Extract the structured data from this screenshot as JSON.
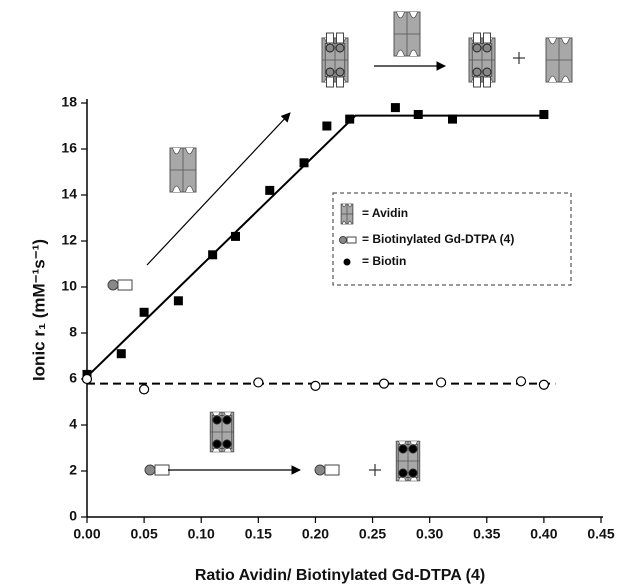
{
  "chart_data": {
    "type": "scatter",
    "x_label": "Ratio Avidin/ Biotinylated Gd-DTPA (4)",
    "y_label": "Ionic r₁ (mM⁻¹s⁻¹)",
    "xlim": [
      0,
      0.45
    ],
    "ylim": [
      0,
      18
    ],
    "xticks": [
      {
        "value": 0,
        "label": "0.00"
      },
      {
        "value": 0.05,
        "label": "0.05"
      },
      {
        "value": 0.1,
        "label": "0.10"
      },
      {
        "value": 0.15,
        "label": "0.15"
      },
      {
        "value": 0.2,
        "label": "0.20"
      },
      {
        "value": 0.25,
        "label": "0.25"
      },
      {
        "value": 0.3,
        "label": "0.30"
      },
      {
        "value": 0.35,
        "label": "0.35"
      },
      {
        "value": 0.4,
        "label": "0.40"
      },
      {
        "value": 0.45,
        "label": "0.45"
      }
    ],
    "yticks": [
      0,
      2,
      4,
      6,
      8,
      10,
      12,
      14,
      16,
      18
    ],
    "series": [
      {
        "marker": "square",
        "color": "#000000",
        "x": [
          0,
          0.03,
          0.05,
          0.08,
          0.11,
          0.13,
          0.16,
          0.19,
          0.21,
          0.23,
          0.27,
          0.29,
          0.32,
          0.4
        ],
        "values": [
          6.2,
          7.1,
          8.9,
          9.4,
          11.4,
          12.2,
          14.2,
          15.4,
          17.0,
          17.3,
          17.8,
          17.5,
          17.3,
          17.5
        ]
      },
      {
        "marker": "circle",
        "color": "#000000",
        "x": [
          0,
          0.05,
          0.15,
          0.2,
          0.26,
          0.31,
          0.38,
          0.4
        ],
        "values": [
          6.0,
          5.55,
          5.85,
          5.7,
          5.8,
          5.85,
          5.9,
          5.75
        ]
      }
    ],
    "lines": [
      {
        "style": "solid",
        "x": [
          0,
          0.235,
          0.4
        ],
        "values": [
          6.1,
          17.45,
          17.45
        ]
      },
      {
        "style": "dashed",
        "x": [
          0,
          0.41
        ],
        "values": [
          5.8,
          5.8
        ]
      }
    ],
    "legend": [
      "= Avidin",
      "= Biotinylated Gd-DTPA (4)",
      "= Biotin"
    ]
  }
}
